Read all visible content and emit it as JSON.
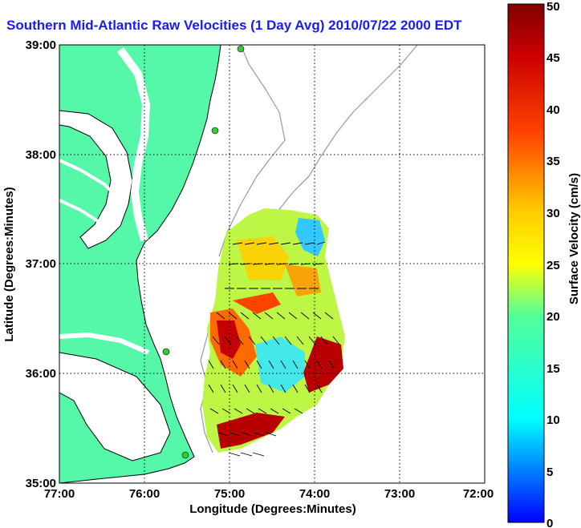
{
  "title": "Southern Mid-Atlantic Raw Velocities (1 Day Avg) 2010/07/22 2000 EDT",
  "colors": {
    "land": "#55f8a9",
    "coast_line": "#000000",
    "bathymetry": "#999999",
    "station": "#33cc33",
    "grid": "#000000",
    "title": "#1a1aff"
  },
  "map": {
    "x_label": "Longitude (Degrees:Minutes)",
    "y_label": "Latitude (Degrees:Minutes)",
    "lon_range": [
      -77,
      -72
    ],
    "lat_range": [
      35,
      39
    ],
    "x_ticks": [
      "77:00",
      "76:00",
      "75:00",
      "74:00",
      "73:00",
      "72:00"
    ],
    "y_ticks": [
      "35:00",
      "36:00",
      "37:00",
      "38:00",
      "39:00"
    ]
  },
  "colorbar": {
    "label": "Surface Velocity (cm/s)",
    "min": 0,
    "max": 50,
    "ticks": [
      "0",
      "5",
      "10",
      "15",
      "20",
      "25",
      "30",
      "35",
      "40",
      "45",
      "50"
    ]
  },
  "chart_data": {
    "type": "heatmap",
    "x_axis": "Longitude",
    "y_axis": "Latitude",
    "xlim": [
      -77,
      -72
    ],
    "ylim": [
      35,
      39
    ],
    "colorbar_range": [
      0,
      50
    ],
    "grid": true
  }
}
